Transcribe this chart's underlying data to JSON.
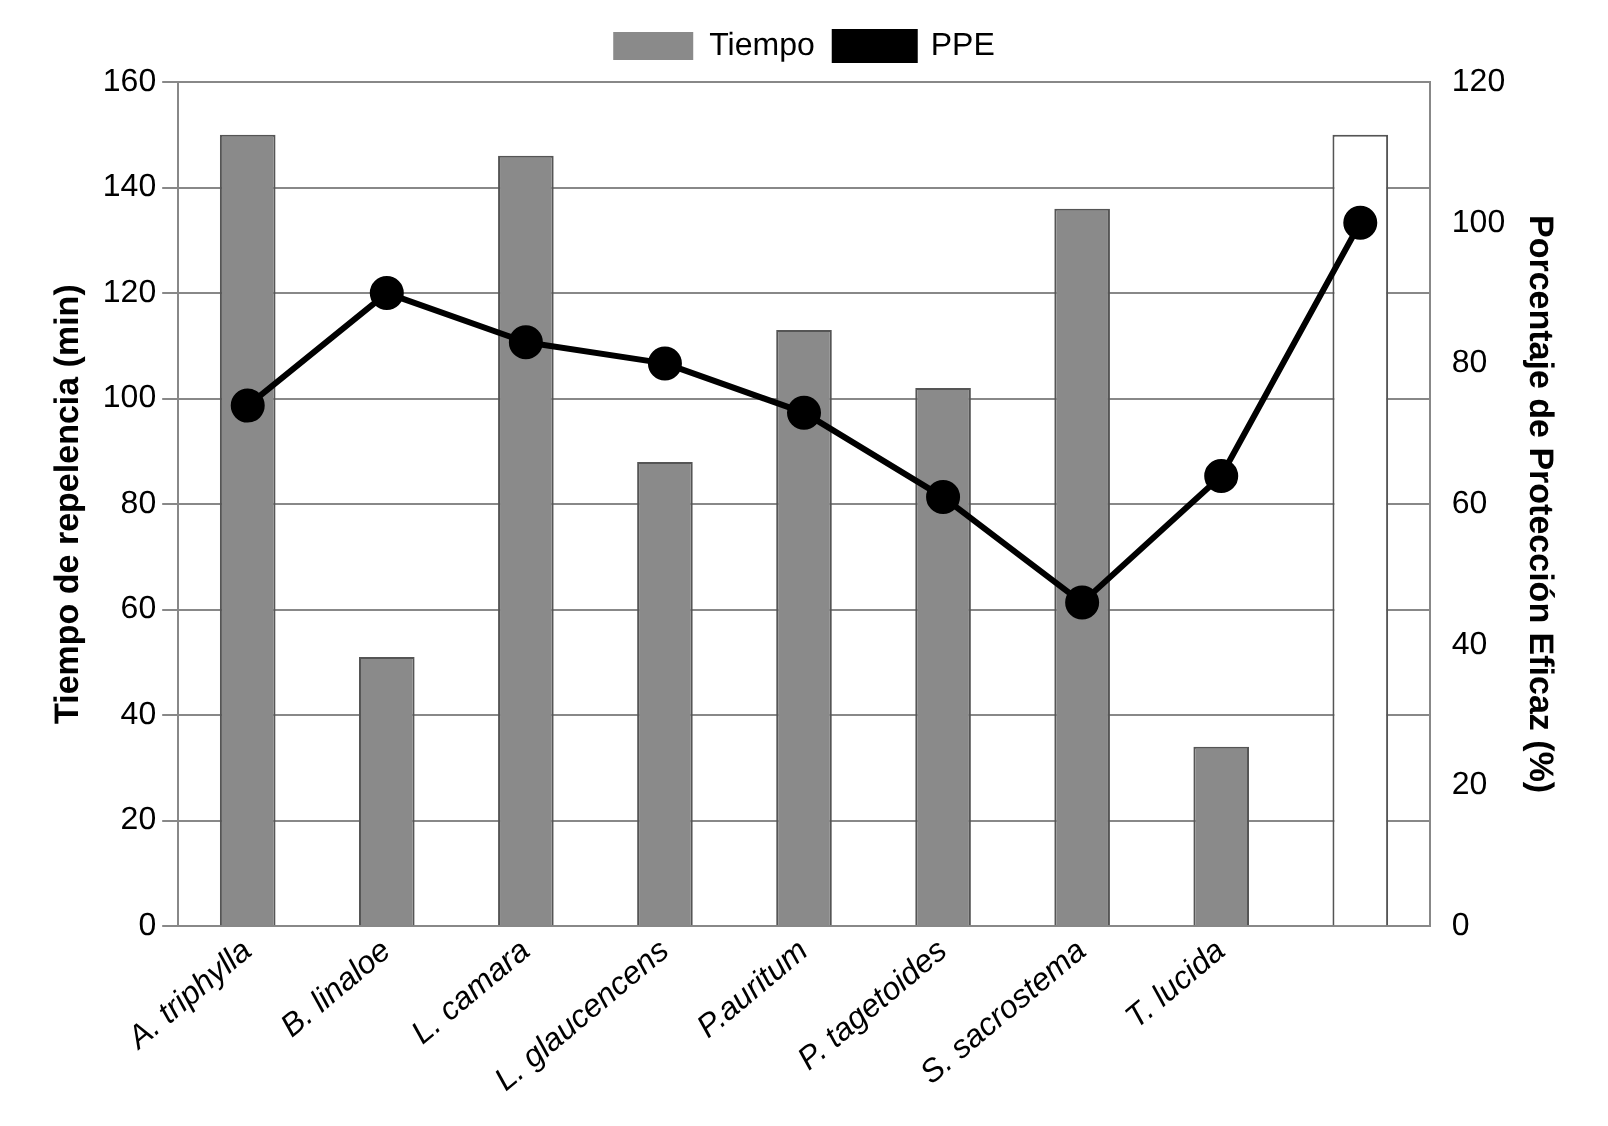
{
  "chart_data": {
    "type": "bar",
    "categories": [
      "A. triphylla",
      "B. linaloe",
      "L. camara",
      "L. glaucencens",
      "P.auritum",
      "P. tagetoides",
      "S. sacrostema",
      "T. lucida",
      null
    ],
    "series": [
      {
        "name": "Tiempo",
        "colors": [
          "#8a8a8a",
          "#8a8a8a",
          "#8a8a8a",
          "#8a8a8a",
          "#8a8a8a",
          "#8a8a8a",
          "#8a8a8a",
          "#8a8a8a",
          "#ffffff"
        ],
        "values": [
          150,
          51,
          146,
          88,
          113,
          102,
          136,
          34,
          150
        ]
      },
      {
        "name": "PPE",
        "type": "line",
        "axis": "y2",
        "color": "#000000",
        "values": [
          74,
          90,
          83,
          80,
          73,
          61,
          46,
          64,
          100
        ]
      }
    ],
    "ylabel": "Tiempo de repelencia (min)",
    "y2label": "Porcentaje de Protección Eficaz (%)",
    "ylim": [
      0,
      160
    ],
    "yticks": [
      0,
      20,
      40,
      60,
      80,
      100,
      120,
      140,
      160
    ],
    "y2lim": [
      0,
      120
    ],
    "y2ticks": [
      0,
      20,
      40,
      60,
      80,
      100,
      120
    ],
    "grid": "y",
    "legend": "top",
    "marker": "circle",
    "line_style": "solid"
  }
}
